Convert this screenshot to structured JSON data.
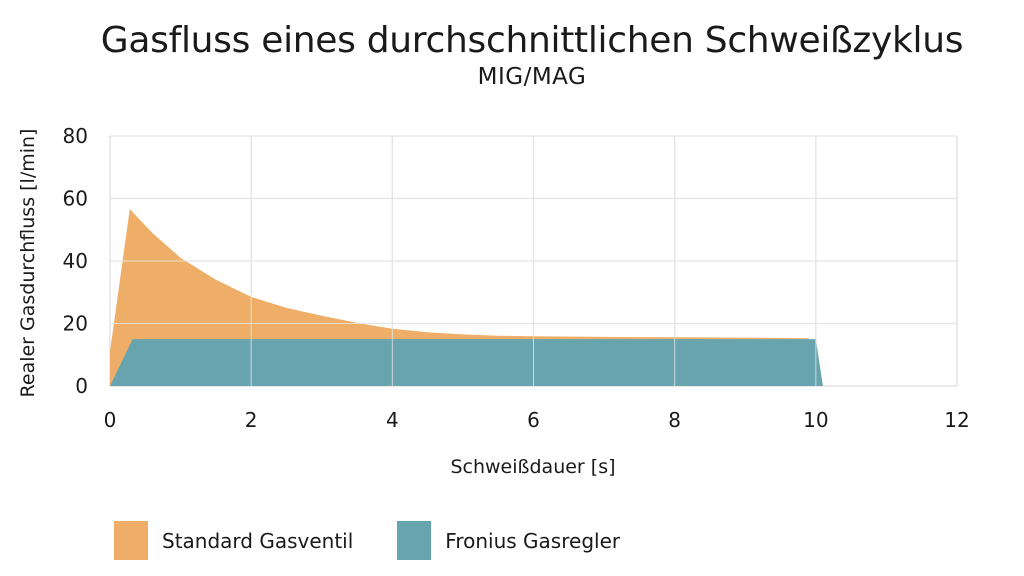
{
  "chart_data": {
    "type": "area",
    "title": "Gasfluss eines durchschnittlichen Schweißzyklus",
    "subtitle": "MIG/MAG",
    "xlabel": "Schweißdauer [s]",
    "ylabel": "Realer Gasdurchfluss [l/min]",
    "xlim": [
      0,
      12
    ],
    "ylim": [
      0,
      80
    ],
    "x_ticks": [
      0,
      2,
      4,
      6,
      8,
      10,
      12
    ],
    "y_ticks": [
      0,
      20,
      40,
      60,
      80
    ],
    "grid": true,
    "legend_position": "bottom-left",
    "series": [
      {
        "name": "Standard Gasventil",
        "color": "#EFAE68",
        "points": [
          [
            0,
            11
          ],
          [
            0.28,
            56.6
          ],
          [
            0.6,
            49
          ],
          [
            1.0,
            41
          ],
          [
            1.5,
            34
          ],
          [
            2.0,
            28.5
          ],
          [
            2.5,
            25
          ],
          [
            3.0,
            22.5
          ],
          [
            3.5,
            20.2
          ],
          [
            4.0,
            18.3
          ],
          [
            4.5,
            17.2
          ],
          [
            5.0,
            16.5
          ],
          [
            5.5,
            16.1
          ],
          [
            6.0,
            15.9
          ],
          [
            7.0,
            15.7
          ],
          [
            8.0,
            15.6
          ],
          [
            9.0,
            15.5
          ],
          [
            9.9,
            15.3
          ],
          [
            9.9,
            0
          ]
        ]
      },
      {
        "name": "Fronius Gasregler",
        "color": "#68A4AE",
        "points": [
          [
            0,
            0
          ],
          [
            0.32,
            15
          ],
          [
            10.0,
            15
          ],
          [
            10.1,
            0
          ]
        ]
      }
    ]
  },
  "legend": {
    "items": [
      {
        "label": "Standard Gasventil",
        "color": "#EFAE68"
      },
      {
        "label": "Fronius Gasregler",
        "color": "#68A4AE"
      }
    ]
  }
}
